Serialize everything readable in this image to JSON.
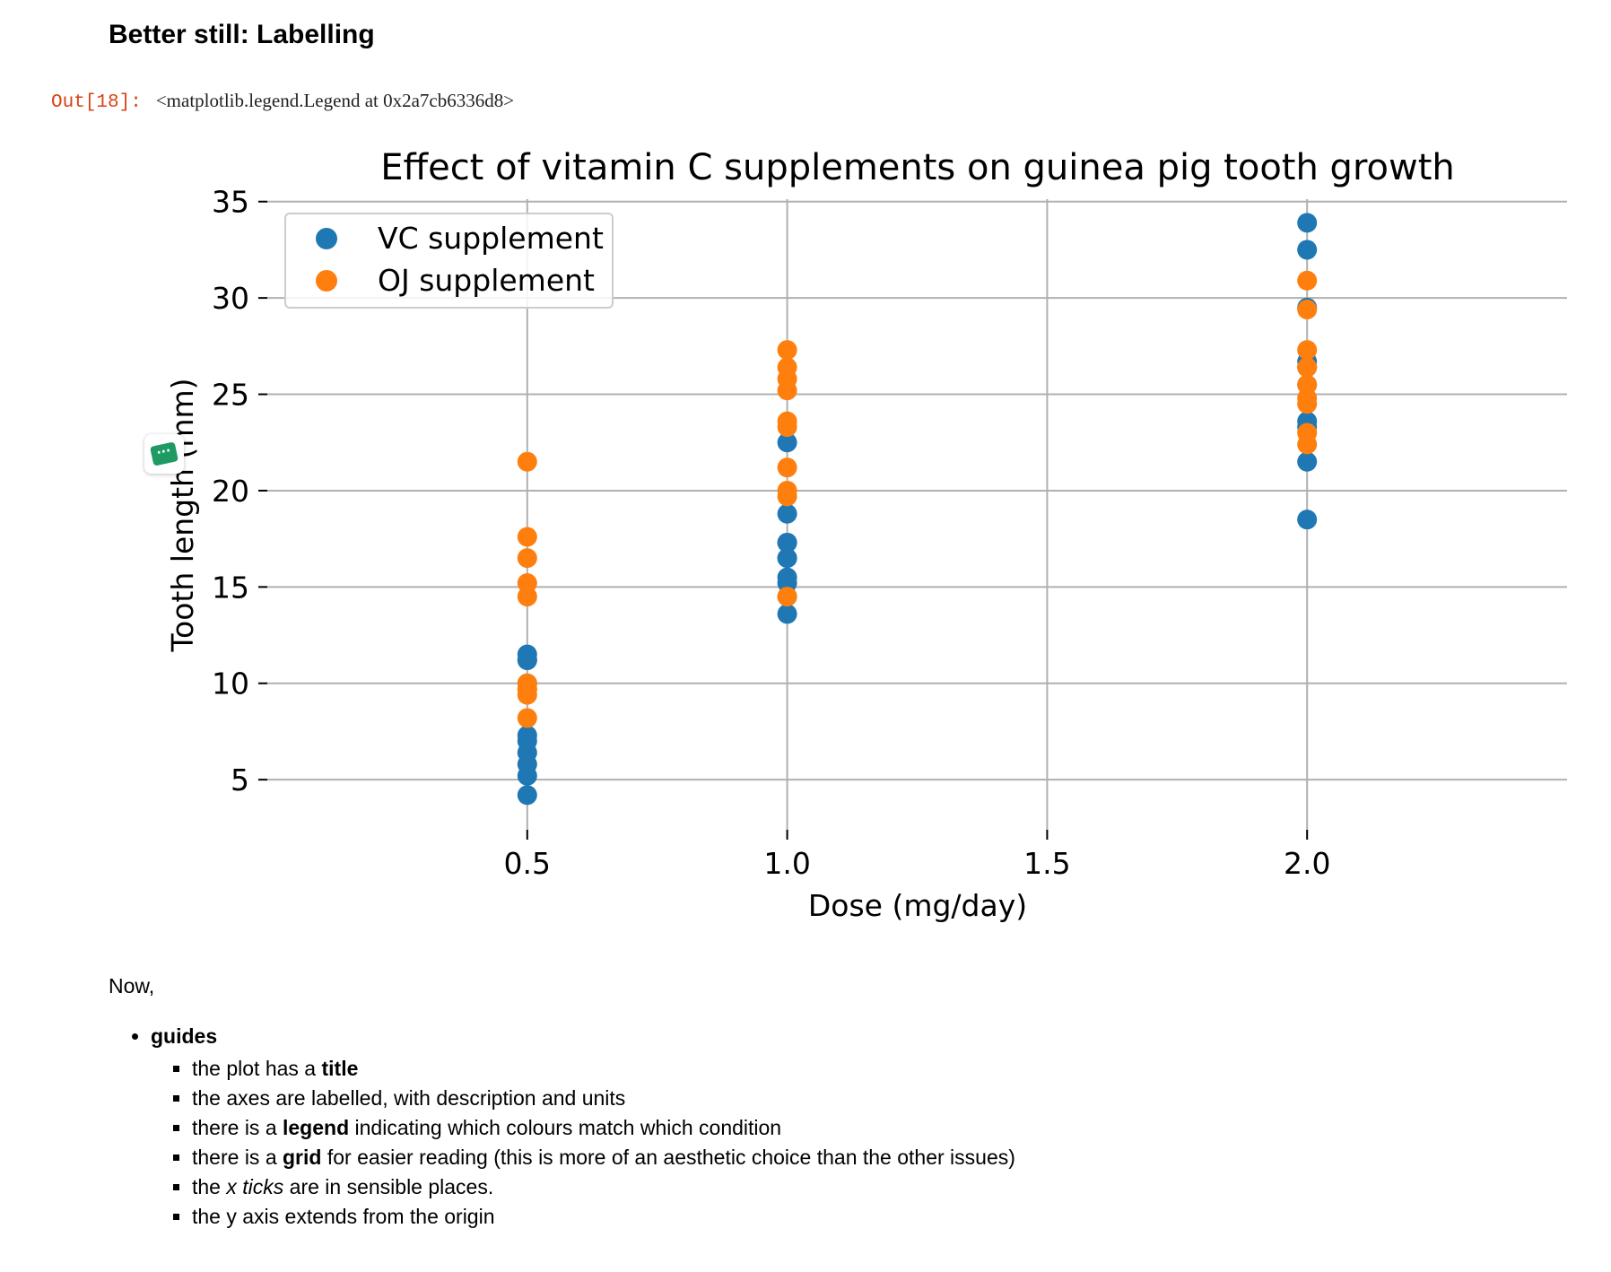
{
  "section_heading": "Better still: Labelling",
  "output": {
    "prompt": "Out[18]:",
    "value": "<matplotlib.legend.Legend at 0x2a7cb6336d8>"
  },
  "chart_data": {
    "type": "scatter",
    "title": "Effect of vitamin C supplements on guinea pig tooth growth",
    "xlabel": "Dose (mg/day)",
    "ylabel": "Tooth length (mm)",
    "xlim": [
      0.0,
      2.5
    ],
    "ylim": [
      2.4,
      35.5
    ],
    "xticks": [
      "0.5",
      "1.0",
      "1.5",
      "2.0"
    ],
    "yticks": [
      "5",
      "10",
      "15",
      "20",
      "25",
      "30",
      "35"
    ],
    "grid": true,
    "legend_position": "upper-left",
    "series": [
      {
        "name": "VC supplement",
        "color": "#1f77b4",
        "x": [
          0.5,
          0.5,
          0.5,
          0.5,
          0.5,
          0.5,
          0.5,
          0.5,
          0.5,
          0.5,
          1.0,
          1.0,
          1.0,
          1.0,
          1.0,
          1.0,
          1.0,
          1.0,
          1.0,
          1.0,
          2.0,
          2.0,
          2.0,
          2.0,
          2.0,
          2.0,
          2.0,
          2.0,
          2.0,
          2.0
        ],
        "y": [
          4.2,
          11.5,
          7.3,
          5.8,
          6.4,
          10.0,
          11.2,
          11.2,
          5.2,
          7.0,
          16.5,
          16.5,
          15.2,
          17.3,
          22.5,
          17.3,
          13.6,
          14.5,
          18.8,
          15.5,
          23.6,
          18.5,
          33.9,
          25.5,
          26.4,
          32.5,
          26.7,
          21.5,
          23.3,
          29.5
        ]
      },
      {
        "name": "OJ supplement",
        "color": "#ff7f0e",
        "x": [
          0.5,
          0.5,
          0.5,
          0.5,
          0.5,
          0.5,
          0.5,
          0.5,
          0.5,
          0.5,
          1.0,
          1.0,
          1.0,
          1.0,
          1.0,
          1.0,
          1.0,
          1.0,
          1.0,
          1.0,
          2.0,
          2.0,
          2.0,
          2.0,
          2.0,
          2.0,
          2.0,
          2.0,
          2.0,
          2.0
        ],
        "y": [
          15.2,
          21.5,
          17.6,
          9.7,
          14.5,
          10.0,
          8.2,
          9.4,
          16.5,
          9.7,
          19.7,
          23.3,
          23.6,
          26.4,
          20.0,
          25.2,
          25.8,
          21.2,
          14.5,
          27.3,
          25.5,
          26.4,
          22.4,
          24.5,
          24.8,
          30.9,
          26.4,
          27.3,
          29.4,
          23.0
        ]
      }
    ]
  },
  "chat_widget": {
    "icon": "chat-bubble-icon",
    "glyph": "···"
  },
  "notes": {
    "intro": "Now,",
    "items": [
      {
        "label": "guides",
        "subitems": [
          [
            "the plot has a ",
            {
              "b": "title"
            }
          ],
          [
            "the axes are labelled, with description and units"
          ],
          [
            "there is a ",
            {
              "b": "legend"
            },
            " indicating which colours match which condition"
          ],
          [
            "there is a ",
            {
              "b": "grid"
            },
            " for easier reading (this is more of an aesthetic choice than the other issues)"
          ],
          [
            "the ",
            {
              "i": "x ticks"
            },
            " are in sensible places."
          ],
          [
            "the y axis extends from the origin"
          ]
        ]
      }
    ]
  }
}
